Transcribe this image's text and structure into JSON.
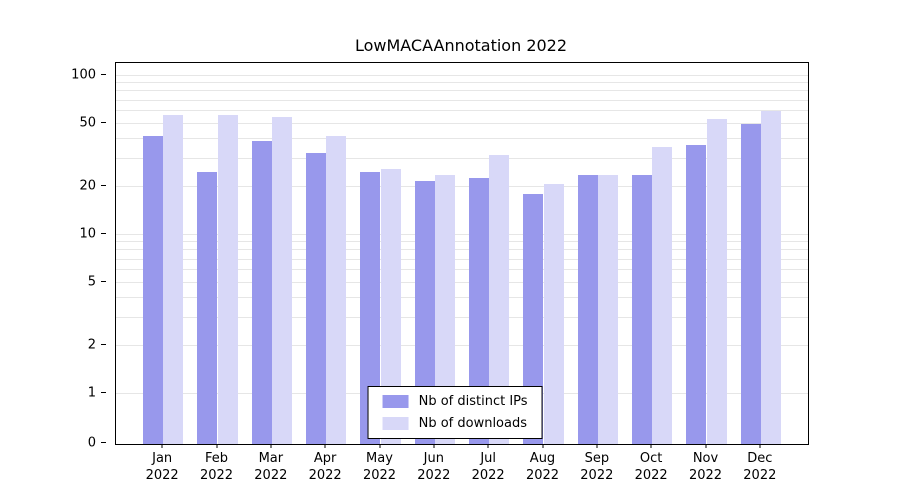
{
  "chart_data": {
    "type": "bar",
    "title": "LowMACAAnnotation 2022",
    "year_label": "2022",
    "categories": [
      "Jan",
      "Feb",
      "Mar",
      "Apr",
      "May",
      "Jun",
      "Jul",
      "Aug",
      "Sep",
      "Oct",
      "Nov",
      "Dec"
    ],
    "series": [
      {
        "key": "distinct-ips",
        "name": "Nb of distinct IPs",
        "values": [
          42,
          25,
          39,
          33,
          25,
          22,
          23,
          18,
          24,
          24,
          37,
          50
        ]
      },
      {
        "key": "downloads",
        "name": "Nb of downloads",
        "values": [
          57,
          57,
          55,
          42,
          26,
          24,
          32,
          21,
          24,
          36,
          54,
          60
        ]
      }
    ],
    "colors": [
      "#9898ec",
      "#d8d8f8"
    ],
    "yticks": [
      0,
      1,
      2,
      5,
      10,
      20,
      50,
      100
    ],
    "gridlines": [
      1,
      2,
      3,
      4,
      5,
      6,
      7,
      8,
      9,
      10,
      20,
      30,
      40,
      50,
      60,
      70,
      80,
      90,
      100
    ],
    "ylim": [
      0,
      100
    ],
    "yscale": "log-above-1-with-zero-baseline",
    "grid": "horizontal-minor-log-gridlines",
    "legend_position": "inside-bottom-center"
  }
}
